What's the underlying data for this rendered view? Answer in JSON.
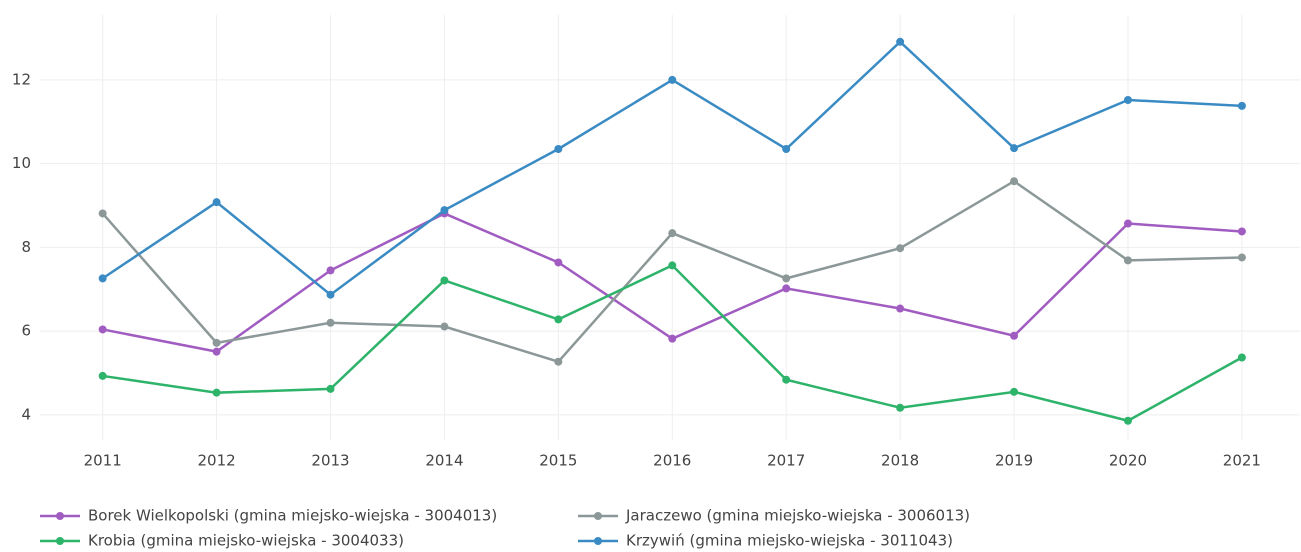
{
  "chart_data": {
    "type": "line",
    "x": [
      2011,
      2012,
      2013,
      2014,
      2015,
      2016,
      2017,
      2018,
      2019,
      2020,
      2021
    ],
    "xlim": [
      2010.45,
      2021.51
    ],
    "xticks": [
      2011,
      2012,
      2013,
      2014,
      2015,
      2016,
      2017,
      2018,
      2019,
      2020,
      2021
    ],
    "ylim": [
      3.4,
      13.55
    ],
    "yticks": [
      4,
      6,
      8,
      10,
      12
    ],
    "grid": true,
    "legend": "bottom",
    "series": [
      {
        "name": "Borek Wielkopolski (gmina miejsko-wiejska - 3004013)",
        "color": "#a05cc0",
        "values": [
          6.04,
          5.51,
          7.45,
          8.81,
          7.64,
          5.82,
          7.02,
          6.54,
          5.89,
          8.57,
          8.38
        ]
      },
      {
        "name": "Jaraczewo (gmina miejsko-wiejska - 3006013)",
        "color": "#8c9898",
        "values": [
          8.81,
          5.72,
          6.2,
          6.11,
          5.27,
          8.34,
          7.26,
          7.98,
          9.58,
          7.69,
          7.76
        ]
      },
      {
        "name": "Krobia (gmina miejsko-wiejska - 3004033)",
        "color": "#2eb36a",
        "values": [
          4.93,
          4.53,
          4.62,
          7.21,
          6.28,
          7.57,
          4.84,
          4.17,
          4.55,
          3.86,
          5.37
        ]
      },
      {
        "name": "Krzywiń (gmina miejsko-wiejska - 3011043)",
        "color": "#3a8bc4",
        "values": [
          7.26,
          9.08,
          6.87,
          8.89,
          10.35,
          12.0,
          10.35,
          12.91,
          10.37,
          11.52,
          11.38
        ]
      }
    ]
  }
}
